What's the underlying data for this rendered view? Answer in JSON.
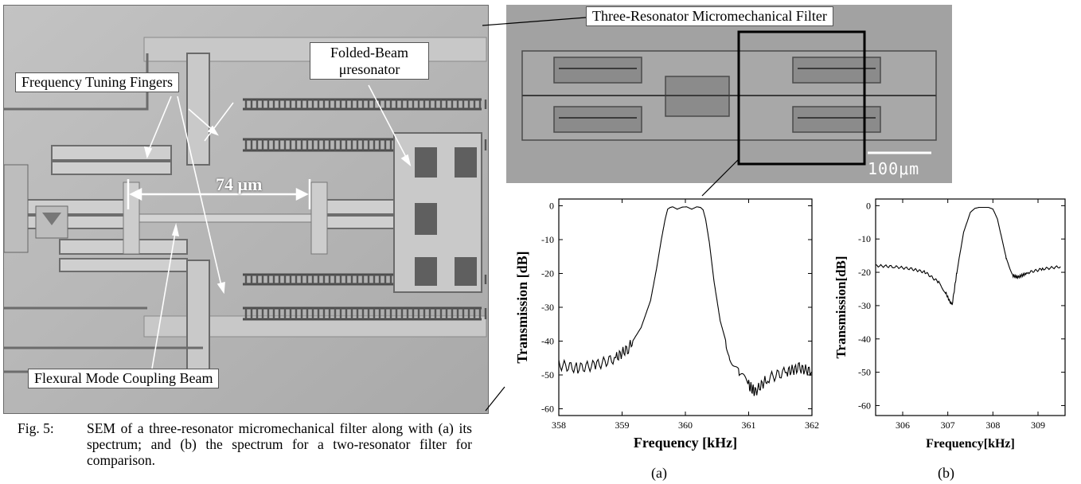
{
  "figure": {
    "labels": {
      "tuning": "Frequency Tuning Fingers",
      "folded_1": "Folded-Beam",
      "folded_2": "μresonator",
      "coupling": "Flexural Mode Coupling Beam",
      "dimension": "74 μm",
      "overview_title": "Three-Resonator Micromechanical Filter",
      "scale_bar": "100μm"
    },
    "caption": {
      "tag": "Fig. 5:",
      "text": "SEM of a three-resonator micromechanical filter along with (a) its spectrum; and (b) the spectrum for a two-resonator filter for comparison."
    },
    "sublabels": {
      "a": "(a)",
      "b": "(b)"
    },
    "colors": {
      "sem_bg": "#b3b3b3",
      "photo_bg": "#9d9d9d",
      "ink": "#000000"
    }
  },
  "chart_data": [
    {
      "type": "line",
      "id": "a",
      "xlabel": "Frequency [kHz]",
      "ylabel": "Transmission [dB]",
      "xlim": [
        358,
        362
      ],
      "ylim": [
        -62,
        2
      ],
      "xticks": [
        358,
        359,
        360,
        361,
        362
      ],
      "yticks": [
        0,
        -10,
        -20,
        -30,
        -40,
        -50,
        -60
      ],
      "grid": false,
      "series": [
        {
          "x": [
            358.0,
            358.3,
            358.6,
            358.9,
            359.1,
            359.3,
            359.45,
            359.55,
            359.62,
            359.68,
            359.72,
            359.76,
            359.8,
            359.87,
            359.95,
            360.02,
            360.1,
            360.18,
            360.24,
            360.28,
            360.32,
            360.38,
            360.45,
            360.55,
            360.7,
            360.85,
            361.0,
            361.1,
            361.3,
            361.6,
            361.8,
            362.0
          ],
          "y": [
            -47,
            -48,
            -47,
            -45,
            -42,
            -36,
            -28,
            -18,
            -10,
            -4,
            -1,
            -0.5,
            -0.3,
            -1,
            -0.4,
            -0.3,
            -1,
            -0.3,
            -0.5,
            -1.2,
            -4,
            -11,
            -22,
            -34,
            -44,
            -50,
            -53,
            -55,
            -51,
            -49,
            -48,
            -49
          ]
        }
      ]
    },
    {
      "type": "line",
      "id": "b",
      "xlabel": "Frequency[kHz]",
      "ylabel": "Transmission[dB]",
      "xlim": [
        305.4,
        309.6
      ],
      "ylim": [
        -63,
        2
      ],
      "xticks": [
        306,
        307,
        308,
        309
      ],
      "yticks": [
        0,
        -10,
        -20,
        -30,
        -40,
        -50,
        -60
      ],
      "grid": false,
      "series": [
        {
          "x": [
            305.4,
            305.8,
            306.2,
            306.5,
            306.8,
            306.95,
            307.05,
            307.1,
            307.2,
            307.35,
            307.5,
            307.6,
            307.7,
            307.9,
            308.0,
            308.1,
            308.2,
            308.3,
            308.45,
            308.55,
            308.8,
            309.1,
            309.5
          ],
          "y": [
            -18,
            -18.3,
            -19,
            -20,
            -23,
            -26,
            -29,
            -29.5,
            -20,
            -8,
            -2,
            -0.8,
            -0.5,
            -0.5,
            -1,
            -4,
            -10,
            -16,
            -21,
            -21.5,
            -20,
            -19,
            -18.3
          ]
        }
      ]
    }
  ]
}
